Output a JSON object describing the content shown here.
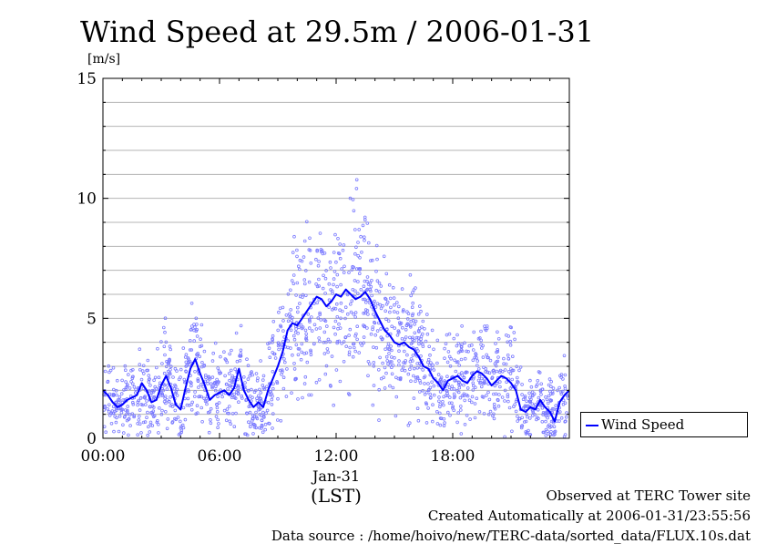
{
  "colors": {
    "line": "#0000ff",
    "points": "#7a7aff",
    "grid": "#b4b4b4"
  },
  "chart_data": {
    "type": "line",
    "title": "Wind Speed at 29.5m / 2006-01-31",
    "ylabel": "[m/s]",
    "xlabel": "(LST)",
    "date_label": "Jan-31",
    "x_unit": "hours",
    "xlim": [
      0,
      24
    ],
    "ylim": [
      0,
      15
    ],
    "xticks": [
      {
        "value": 0,
        "label": "00:00"
      },
      {
        "value": 6,
        "label": "06:00"
      },
      {
        "value": 12,
        "label": "12:00"
      },
      {
        "value": 18,
        "label": "18:00"
      }
    ],
    "yticks": [
      {
        "value": 0,
        "label": "0"
      },
      {
        "value": 5,
        "label": "5"
      },
      {
        "value": 10,
        "label": "10"
      },
      {
        "value": 15,
        "label": "15"
      }
    ],
    "grid": true,
    "legend_position": "right",
    "series": [
      {
        "name": "Wind Speed",
        "x": [
          0.0,
          0.25,
          0.5,
          0.75,
          1.0,
          1.25,
          1.5,
          1.75,
          2.0,
          2.25,
          2.5,
          2.75,
          3.0,
          3.25,
          3.5,
          3.75,
          4.0,
          4.25,
          4.5,
          4.75,
          5.0,
          5.25,
          5.5,
          5.75,
          6.0,
          6.25,
          6.5,
          6.75,
          7.0,
          7.25,
          7.5,
          7.75,
          8.0,
          8.25,
          8.5,
          8.75,
          9.0,
          9.25,
          9.5,
          9.75,
          10.0,
          10.25,
          10.5,
          10.75,
          11.0,
          11.25,
          11.5,
          11.75,
          12.0,
          12.25,
          12.5,
          12.75,
          13.0,
          13.25,
          13.5,
          13.75,
          14.0,
          14.25,
          14.5,
          14.75,
          15.0,
          15.25,
          15.5,
          15.75,
          16.0,
          16.25,
          16.5,
          16.75,
          17.0,
          17.25,
          17.5,
          17.75,
          18.0,
          18.25,
          18.5,
          18.75,
          19.0,
          19.25,
          19.5,
          19.75,
          20.0,
          20.25,
          20.5,
          20.75,
          21.0,
          21.25,
          21.5,
          21.75,
          22.0,
          22.25,
          22.5,
          22.75,
          23.0,
          23.25,
          23.5,
          23.75,
          24.0
        ],
        "values": [
          2.0,
          1.8,
          1.5,
          1.3,
          1.4,
          1.6,
          1.7,
          1.8,
          2.3,
          2.0,
          1.5,
          1.6,
          2.2,
          2.6,
          2.1,
          1.4,
          1.2,
          2.1,
          2.9,
          3.3,
          2.7,
          2.2,
          1.6,
          1.8,
          1.9,
          2.0,
          1.8,
          2.1,
          2.9,
          2.0,
          1.6,
          1.3,
          1.5,
          1.3,
          2.0,
          2.5,
          3.0,
          3.6,
          4.5,
          4.8,
          4.7,
          5.0,
          5.3,
          5.6,
          5.9,
          5.8,
          5.5,
          5.7,
          6.0,
          5.9,
          6.2,
          6.0,
          5.8,
          5.9,
          6.1,
          5.8,
          5.3,
          4.9,
          4.5,
          4.3,
          4.0,
          3.9,
          4.0,
          3.8,
          3.7,
          3.4,
          3.0,
          2.9,
          2.5,
          2.3,
          2.0,
          2.4,
          2.5,
          2.6,
          2.4,
          2.3,
          2.6,
          2.8,
          2.7,
          2.5,
          2.2,
          2.4,
          2.6,
          2.5,
          2.3,
          2.0,
          1.2,
          1.1,
          1.3,
          1.2,
          1.6,
          1.3,
          1.1,
          0.7,
          1.5,
          1.8,
          2.0
        ]
      }
    ]
  },
  "footer": {
    "observed": "Observed at TERC Tower site",
    "created": "Created Automatically at 2006-01-31/23:55:56",
    "source": "Data source : /home/hoivo/new/TERC-data/sorted_data/FLUX.10s.dat"
  }
}
